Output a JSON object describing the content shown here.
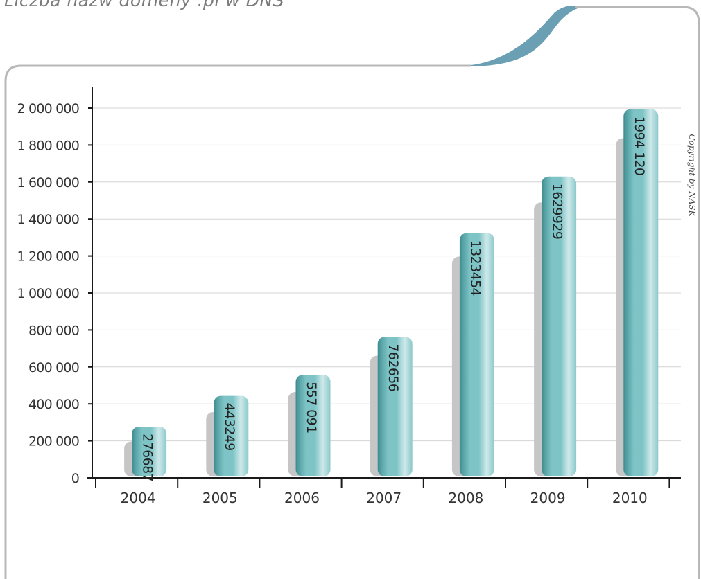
{
  "title": "Liczba nazw domeny .pl w DNS",
  "copyright": "Copyright by NASK",
  "colors": {
    "bar": "#7ec4c6",
    "bar_dark": "#3f8a8e",
    "bar_light": "#cfe9ea",
    "shadow": "#c6c6c6",
    "axis": "#1a1a1a",
    "grid": "#d4d4d4",
    "frame": "#b8b8b8",
    "swoosh": "#6b9fb3"
  },
  "chart_data": {
    "type": "bar",
    "categories": [
      "2004",
      "2005",
      "2006",
      "2007",
      "2008",
      "2009",
      "2010"
    ],
    "values": [
      276687,
      443249,
      557091,
      762656,
      1323454,
      1629929,
      1994120
    ],
    "data_labels": [
      "276687",
      "443249",
      "557 091",
      "762656",
      "1323454",
      "1629929",
      "1994 120"
    ],
    "ylim": [
      0,
      2000000
    ],
    "yticks": [
      0,
      200000,
      400000,
      600000,
      800000,
      1000000,
      1200000,
      1400000,
      1600000,
      1800000,
      2000000
    ],
    "ytick_labels": [
      "0",
      "200 000",
      "400 000",
      "600 000",
      "800 000",
      "1 000 000",
      "1 200 000",
      "1 400 000",
      "1 600 000",
      "1 800 000",
      "2 000 000"
    ],
    "grid": true,
    "xlabel": "",
    "ylabel": ""
  }
}
